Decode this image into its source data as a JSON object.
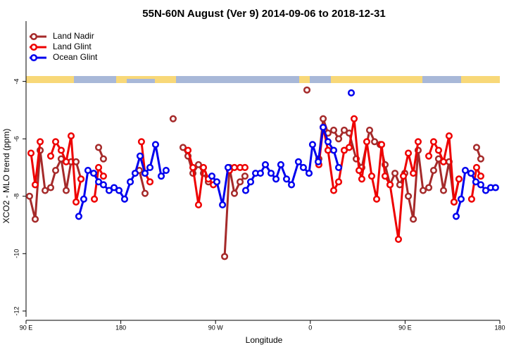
{
  "chart_data": {
    "type": "line",
    "title": "55N-60N August (Ver 9)   2014-09-06 to 2018-12-31",
    "x_label": "Longitude",
    "y_label": "XCO2 - MLO trend (ppm)",
    "xlim": [
      90,
      540
    ],
    "ylim": [
      -12.2,
      -1.9
    ],
    "xticks": [
      {
        "value": 90,
        "label": "90 E"
      },
      180,
      {
        "value": 270,
        "label": "90 W"
      },
      {
        "value": 360,
        "label": "0"
      },
      {
        "value": 450,
        "label": "90 E"
      },
      {
        "value": 540,
        "label": "180"
      }
    ],
    "yticks": [
      -4,
      -6,
      -8,
      -10,
      -12
    ],
    "legend": "top-left",
    "series": [
      {
        "name": "Land Nadir",
        "color": "#a52a2a",
        "x": [
          93.3,
          98.7,
          103.4,
          108.1,
          113.4,
          118.1,
          123.4,
          128.1,
          132.8,
          137.5,
          142.2,
          null,
          158.9,
          163.5,
          null,
          197.6,
          203,
          null,
          229.7,
          null,
          239.1,
          243.8,
          248.5,
          253.8,
          258.5,
          263.2,
          null,
          278.6,
          283.2,
          287.9,
          293.3,
          297.9,
          null,
          356.8,
          null,
          368.1,
          372.2,
          376.8,
          382.2,
          386.9,
          392.2,
          396.9,
          403.6,
          408.9,
          416.3,
          421,
          426.3,
          431,
          435.7,
          440.4,
          445,
          449.7,
          453.1,
          457.8,
          462.4,
          467.1,
          472.5,
          477.1,
          481.8,
          486.5,
          491.8,
          496.5,
          501.2,
          null,
          517.9,
          521.9
        ],
        "values": [
          -8.0,
          -8.8,
          -6.4,
          -7.8,
          -7.7,
          -7.1,
          -6.7,
          -7.8,
          -6.8,
          -6.8,
          -7.4,
          null,
          -6.3,
          -6.7,
          null,
          -7.1,
          -7.9,
          null,
          -5.3,
          null,
          -6.3,
          -6.6,
          -7.2,
          -6.9,
          -7.2,
          -7.5,
          null,
          -10.1,
          -7.0,
          -7.9,
          -7.5,
          -7.3,
          null,
          -4.3,
          null,
          -6.7,
          -5.3,
          -5.8,
          -5.7,
          -6.0,
          -5.7,
          -5.8,
          -6.7,
          -7.0,
          -5.7,
          -6.1,
          -6.2,
          -6.9,
          -7.6,
          -7.2,
          -7.6,
          -7.2,
          -8.0,
          -8.8,
          -6.4,
          -7.8,
          -7.7,
          -7.1,
          -6.7,
          -7.8,
          -6.8,
          -8.2,
          -7.4,
          null,
          -6.3,
          -6.7
        ]
      },
      {
        "name": "Land Glint",
        "color": "#ee0000",
        "x": [
          94.7,
          98.7,
          103.4,
          null,
          113.4,
          118.1,
          123.4,
          128.1,
          132.8,
          137.5,
          142.2,
          null,
          154.9,
          158.9,
          163.5,
          null,
          199.6,
          203,
          207.7,
          null,
          243.8,
          248.5,
          253.8,
          258.5,
          263.2,
          267.9,
          null,
          283.2,
          287.9,
          293.3,
          297.9,
          null,
          368.1,
          372.2,
          376.8,
          382.2,
          386.9,
          392.2,
          396.9,
          401.6,
          406.3,
          408.9,
          413.6,
          418.3,
          423,
          427.7,
          431,
          435.7,
          443.7,
          448.4,
          453.1,
          457.8,
          462.4,
          null,
          472.5,
          477.1,
          481.8,
          486.5,
          491.8,
          496.5,
          501.2,
          null,
          513.2,
          517.9,
          521.9
        ],
        "values": [
          -6.5,
          -7.6,
          -6.1,
          null,
          -6.6,
          -6.1,
          -6.4,
          -6.8,
          -5.9,
          -8.2,
          -7.4,
          null,
          -8.1,
          -7.0,
          -7.3,
          null,
          -6.1,
          -7.2,
          -7.5,
          null,
          -6.4,
          -7.0,
          -8.3,
          -7.0,
          -7.4,
          -7.6,
          null,
          -7.1,
          -7.0,
          -7.0,
          -7.0,
          null,
          -6.9,
          -5.6,
          -6.4,
          -7.8,
          -7.5,
          -6.4,
          -6.3,
          -5.3,
          -7.1,
          -7.4,
          -6.1,
          -7.3,
          -8.1,
          -6.2,
          -7.3,
          -7.6,
          -9.5,
          -7.3,
          -6.5,
          -7.2,
          -6.1,
          null,
          -6.6,
          -6.1,
          -6.4,
          -6.8,
          -5.9,
          -8.2,
          -7.4,
          null,
          -8.1,
          -7.0,
          -7.3
        ]
      },
      {
        "name": "Ocean Glint",
        "color": "#0000ee",
        "x": [
          140.1,
          144.8,
          148.8,
          154.2,
          158.9,
          163.5,
          168.9,
          173.6,
          178.3,
          183.6,
          189,
          193.6,
          198.3,
          203,
          207.7,
          213,
          218.4,
          223,
          null,
          266.5,
          271.2,
          276.6,
          281.9,
          null,
          298.6,
          303.3,
          308,
          312.6,
          317.3,
          322.7,
          327.4,
          332,
          337.4,
          342.1,
          348.7,
          353.4,
          358.8,
          362.1,
          367.5,
          372.2,
          376.8,
          382.2,
          386.9,
          null,
          398.9,
          null,
          498.5,
          503.2,
          507.2,
          512.6,
          517.2,
          521.9,
          526.6,
          531.3,
          535.9
        ],
        "values": [
          -8.7,
          -8.1,
          -7.1,
          -7.2,
          -7.5,
          -7.6,
          -7.8,
          -7.7,
          -7.8,
          -8.1,
          -7.5,
          -7.2,
          -6.6,
          -7.2,
          -7.0,
          -6.2,
          -7.3,
          -7.1,
          null,
          -7.3,
          -7.5,
          -8.3,
          -7.0,
          null,
          -7.8,
          -7.5,
          -7.2,
          -7.2,
          -6.9,
          -7.2,
          -7.4,
          -6.9,
          -7.4,
          -7.6,
          -6.8,
          -7.0,
          -7.2,
          -6.2,
          -6.8,
          -5.6,
          -6.1,
          -6.4,
          -7.0,
          null,
          -4.4,
          null,
          -8.7,
          -8.1,
          -7.1,
          -7.2,
          -7.5,
          -7.6,
          -7.8,
          -7.7,
          -7.7
        ]
      }
    ]
  }
}
